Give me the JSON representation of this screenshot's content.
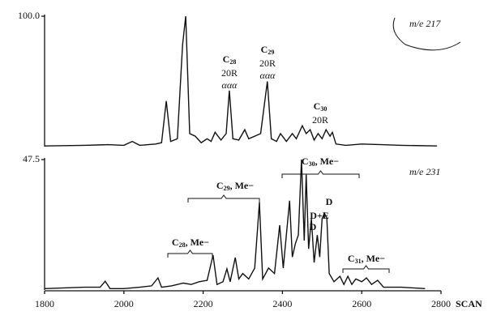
{
  "chart_data": [
    {
      "type": "line",
      "label": "m/e 217",
      "color": "#111111",
      "xlim": [
        1800,
        2800
      ],
      "ylim": [
        0,
        100
      ],
      "yticks": [
        {
          "value": 100,
          "label": "100.0"
        }
      ],
      "x": [
        1800,
        1900,
        1960,
        2000,
        2021,
        2040,
        2080,
        2095,
        2107,
        2118,
        2135,
        2148,
        2156,
        2166,
        2180,
        2195,
        2210,
        2220,
        2230,
        2245,
        2258,
        2266,
        2275,
        2290,
        2305,
        2315,
        2330,
        2345,
        2362,
        2372,
        2385,
        2395,
        2410,
        2425,
        2435,
        2450,
        2460,
        2470,
        2480,
        2490,
        2500,
        2510,
        2520,
        2526,
        2535,
        2560,
        2600,
        2650,
        2700,
        2790
      ],
      "values": [
        0.5,
        1,
        1.5,
        1,
        4,
        1,
        2,
        3,
        35,
        4,
        6,
        78,
        100,
        10,
        8,
        3,
        6,
        4,
        11,
        5,
        10,
        43,
        6,
        5,
        13,
        6,
        8,
        10,
        50,
        6,
        4,
        10,
        4,
        10,
        6,
        16,
        10,
        13,
        5,
        10,
        6,
        13,
        8,
        11,
        2,
        1,
        2,
        1.5,
        1,
        0.5
      ],
      "annotations": [
        {
          "prefix": "C",
          "sub": "28",
          "lines": [
            "20R",
            "ααα"
          ]
        },
        {
          "prefix": "C",
          "sub": "29",
          "lines": [
            "20R",
            "ααα"
          ]
        },
        {
          "prefix": "C",
          "sub": "30",
          "lines": [
            "20R"
          ]
        }
      ]
    },
    {
      "type": "line",
      "label": "m/e 231",
      "color": "#111111",
      "xlim": [
        1800,
        2800
      ],
      "ylim": [
        0,
        47.5
      ],
      "yticks": [
        47.5
      ],
      "xticks": [
        1800,
        2000,
        2200,
        2400,
        2600,
        2800
      ],
      "xlabel": "SCAN",
      "x": [
        1800,
        1900,
        1940,
        1953,
        1965,
        2000,
        2040,
        2070,
        2086,
        2095,
        2120,
        2150,
        2170,
        2190,
        2210,
        2225,
        2235,
        2250,
        2260,
        2268,
        2281,
        2290,
        2300,
        2315,
        2330,
        2342,
        2350,
        2365,
        2380,
        2393,
        2402,
        2418,
        2425,
        2433,
        2440,
        2448,
        2455,
        2460,
        2466,
        2473,
        2480,
        2488,
        2494,
        2500,
        2506,
        2512,
        2518,
        2530,
        2545,
        2555,
        2565,
        2575,
        2585,
        2600,
        2612,
        2625,
        2640,
        2655,
        2700,
        2760
      ],
      "values": [
        0.5,
        1,
        1,
        3.2,
        0.5,
        0.5,
        1,
        1.5,
        4.4,
        1,
        1.5,
        2.5,
        2,
        3,
        3.5,
        12.7,
        2,
        3,
        7.7,
        3,
        11.8,
        4,
        6,
        4,
        8,
        31.9,
        4,
        8,
        6,
        23.6,
        8,
        32.5,
        12,
        17,
        20,
        47.5,
        18,
        42,
        15,
        26,
        10,
        20,
        12,
        26,
        28,
        26,
        6,
        3,
        5,
        2,
        5,
        2,
        4,
        3,
        4.4,
        2,
        3.5,
        1,
        1,
        0.5
      ],
      "annotations": [
        {
          "prefix": "C",
          "sub": "28",
          "suffix": ", Me−"
        },
        {
          "prefix": "C",
          "sub": "29",
          "suffix": ", Me−"
        },
        {
          "prefix": "C",
          "sub": "30",
          "suffix": ", Me−"
        },
        {
          "prefix": "C",
          "sub": "31",
          "suffix": ", Me−"
        },
        {
          "text": "D"
        },
        {
          "text": "D+E"
        },
        {
          "text": "D"
        }
      ]
    }
  ]
}
